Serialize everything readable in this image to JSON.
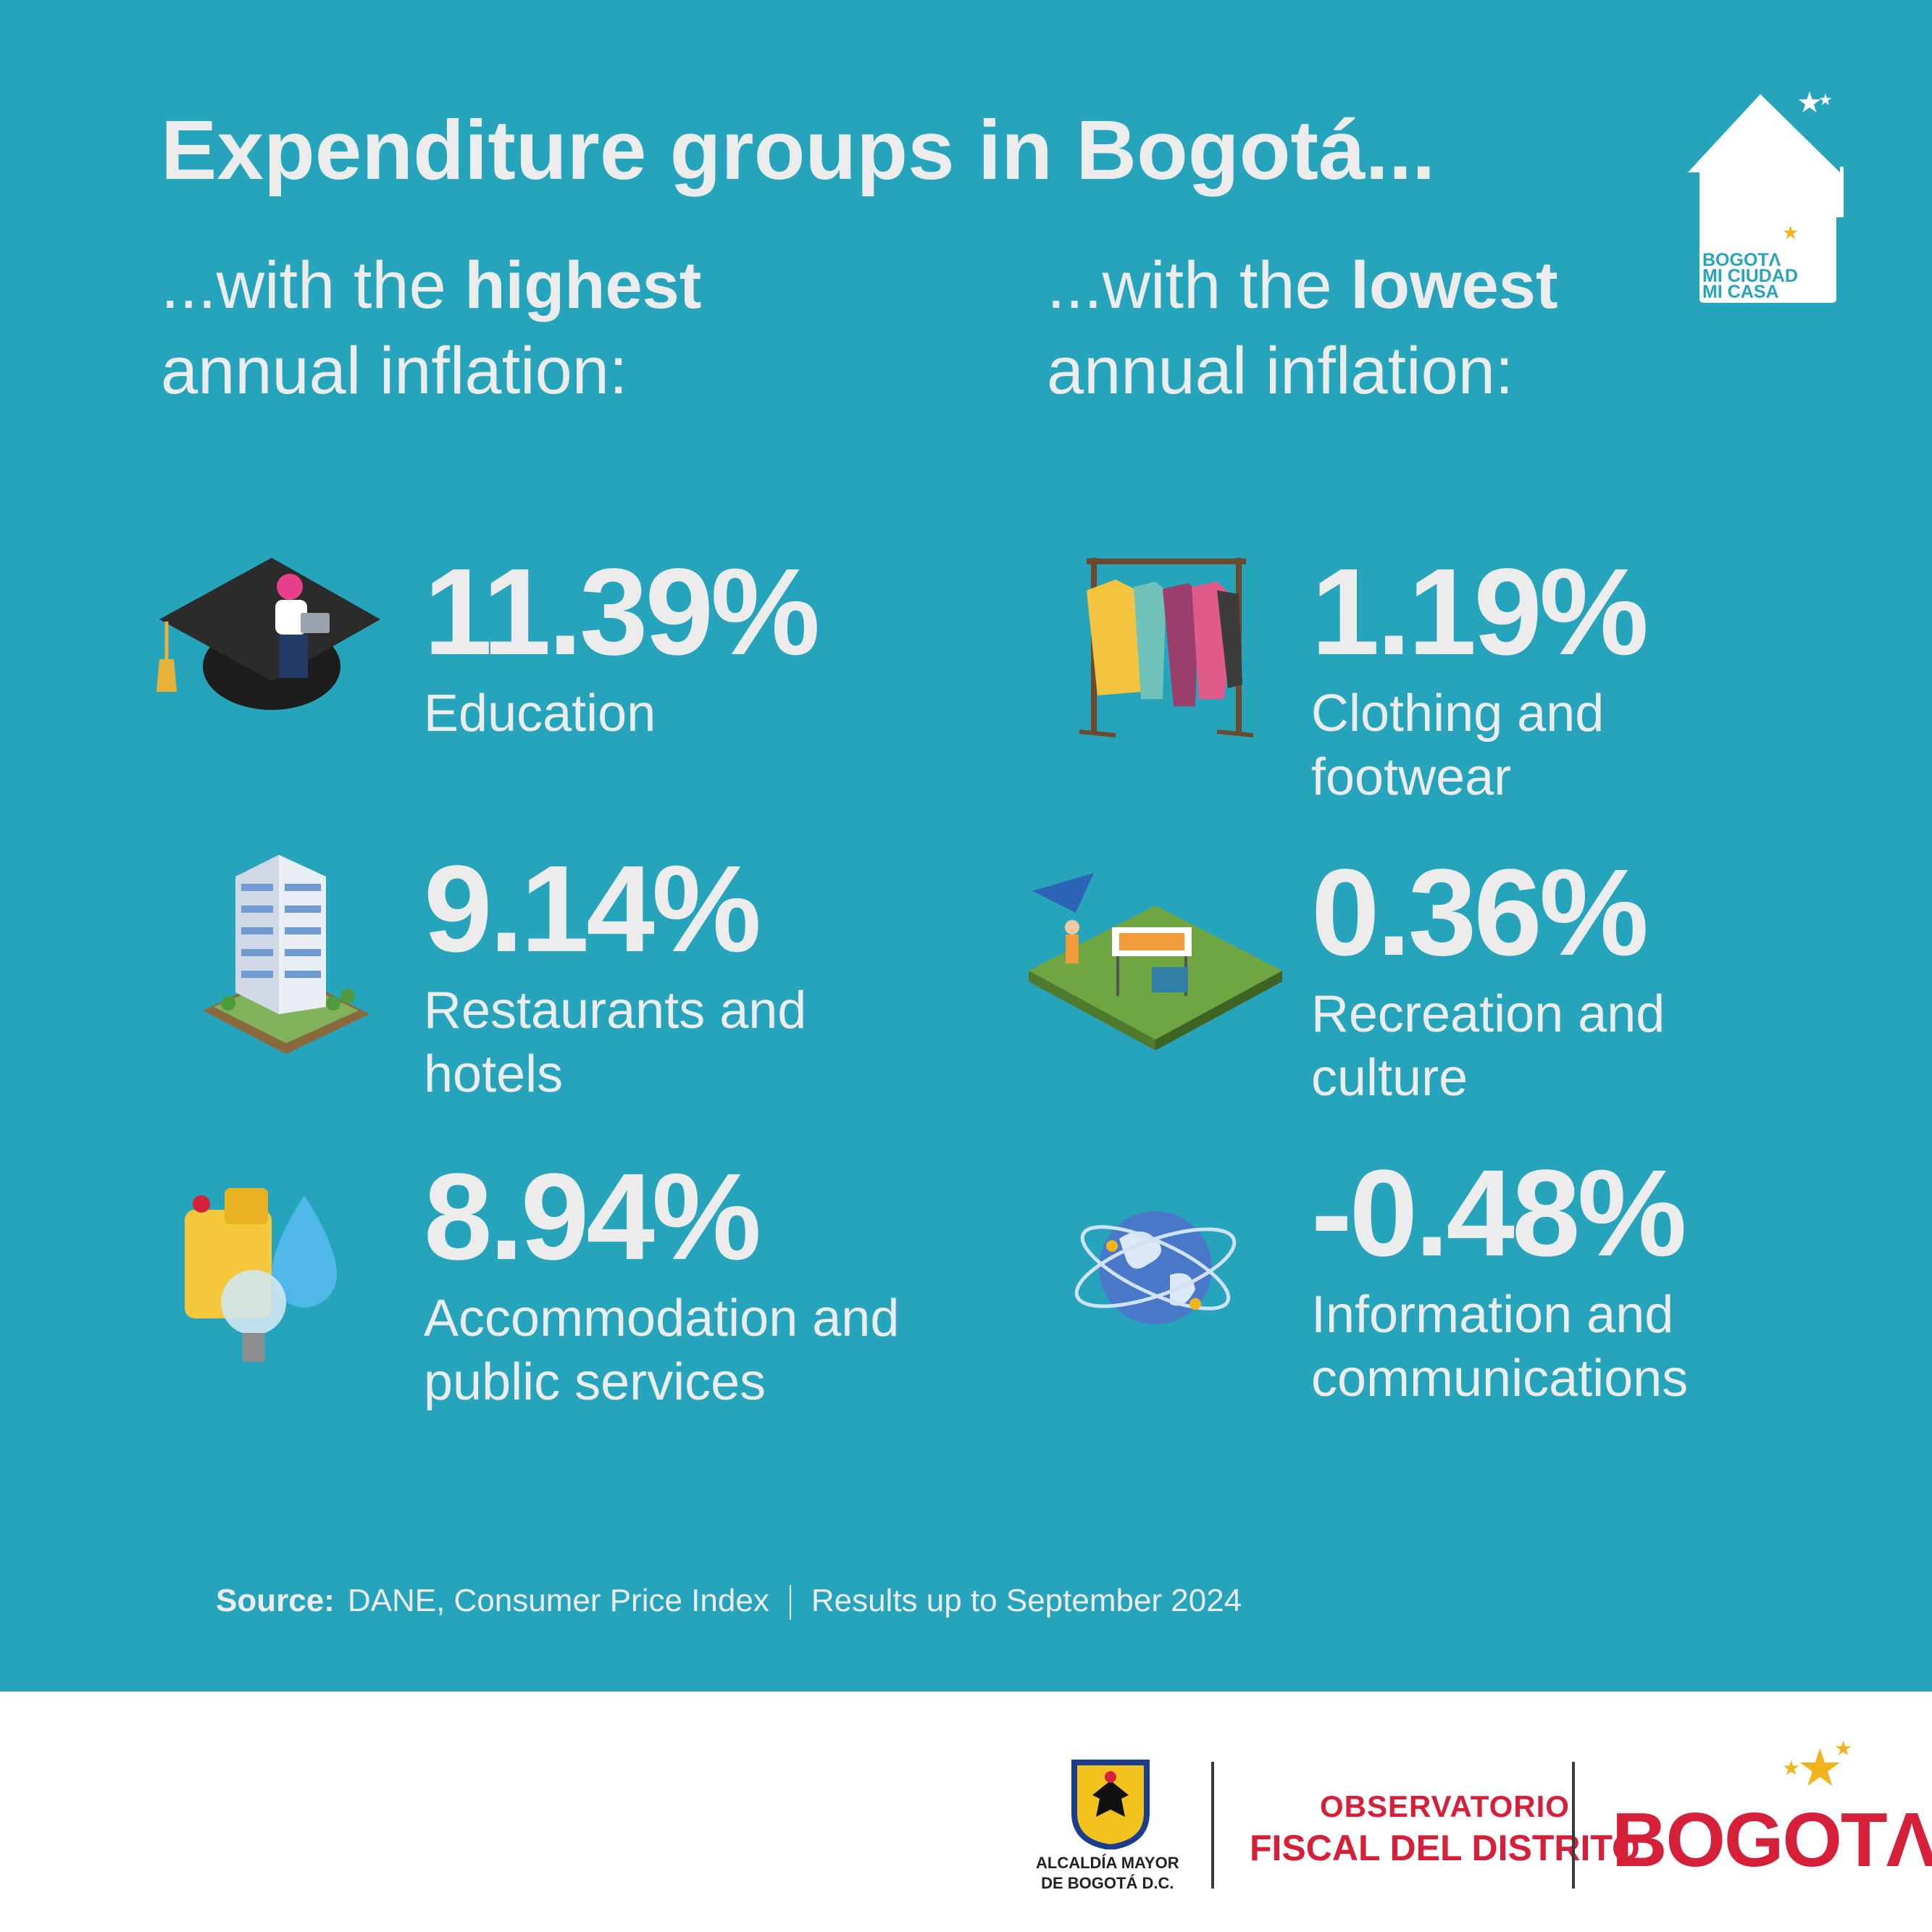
{
  "title": "Expenditure groups in Bogotá...",
  "left_heading": {
    "prefix": "...with the ",
    "bold": "highest",
    "line2": "annual inflation:"
  },
  "right_heading": {
    "prefix": "...with the ",
    "bold": "lowest",
    "line2": "annual inflation:"
  },
  "highest": [
    {
      "value": "11.39%",
      "label": "Education",
      "icon": "graduation-cap-icon"
    },
    {
      "value": "9.14%",
      "label": "Restaurants and hotels",
      "icon": "hotel-building-icon"
    },
    {
      "value": "8.94%",
      "label": "Accommodation and public services",
      "icon": "utilities-icon"
    }
  ],
  "lowest": [
    {
      "value": "1.19%",
      "label": "Clothing and footwear",
      "icon": "clothing-rack-icon"
    },
    {
      "value": "0.36%",
      "label": "Recreation and culture",
      "icon": "park-picnic-icon"
    },
    {
      "value": "-0.48%",
      "label": "Information and communications",
      "icon": "globe-network-icon"
    }
  ],
  "source": {
    "label": "Source:",
    "text": "DANE, Consumer Price Index",
    "period": "Results up to September 2024"
  },
  "logos": {
    "house_badge": [
      "BOGOTΛ",
      "MI CIUDAD",
      "MI CASA"
    ],
    "alcaldia": [
      "ALCALDÍA MAYOR",
      "DE BOGOTÁ D.C."
    ],
    "observatorio": [
      "OBSERVATORIO",
      "FISCAL DEL DISTRITO"
    ],
    "bogota": "BOGOTΛ"
  },
  "colors": {
    "background": "#25a4bc",
    "text": "#ececec",
    "brand_red": "#d6203a",
    "star": "#f2b41c"
  }
}
